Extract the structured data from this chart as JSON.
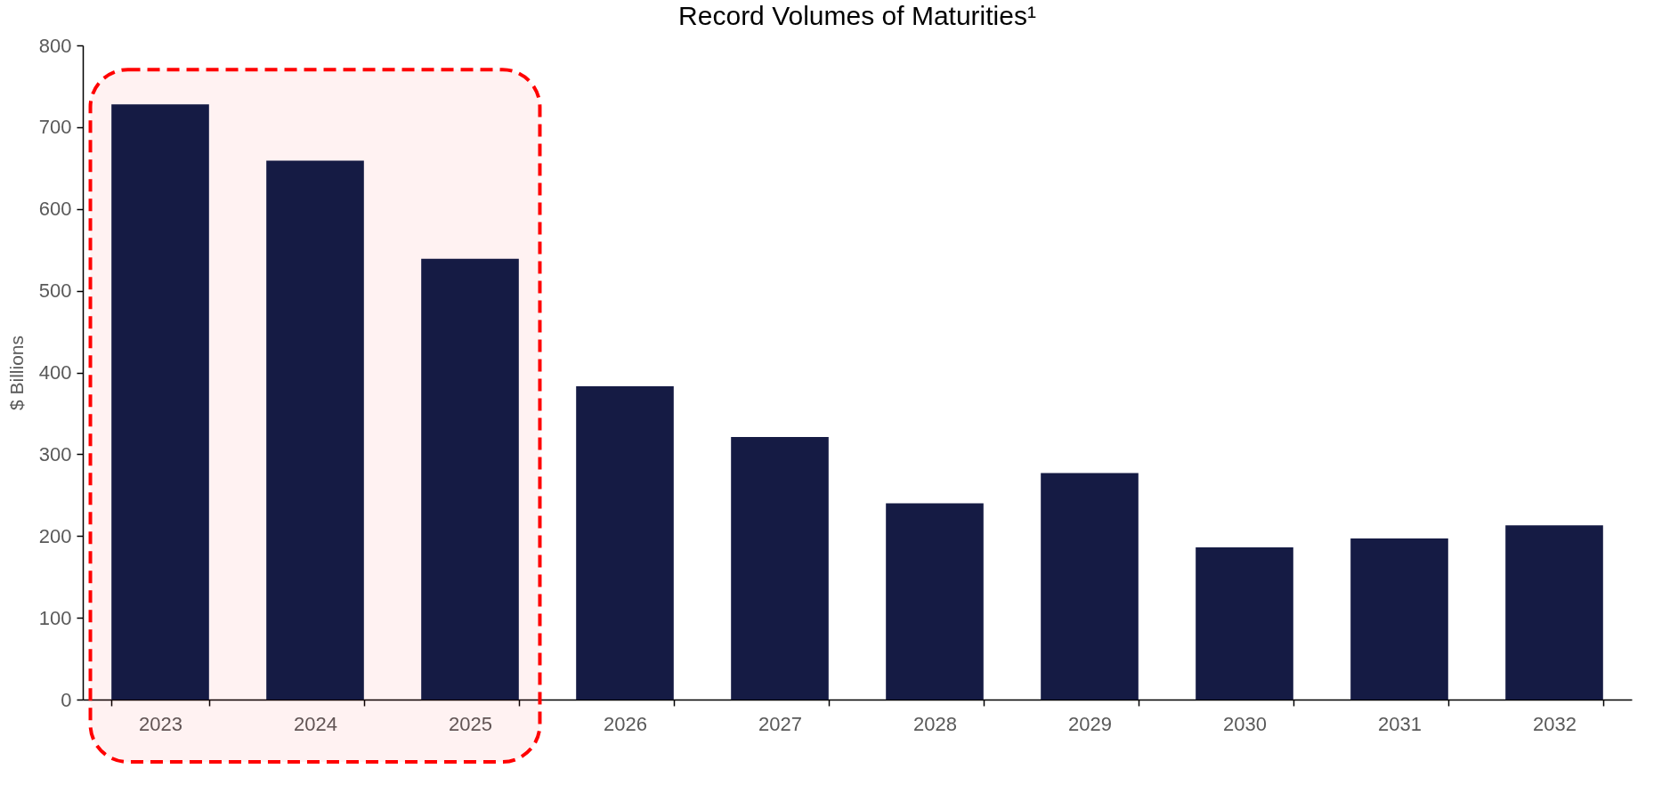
{
  "chart_data": {
    "type": "bar",
    "title": "Record Volumes of Maturities¹",
    "ylabel": "$ Billions",
    "categories": [
      "2023",
      "2024",
      "2025",
      "2026",
      "2027",
      "2028",
      "2029",
      "2030",
      "2031",
      "2032"
    ],
    "values": [
      728,
      659,
      539,
      383,
      321,
      240,
      277,
      186,
      197,
      213
    ],
    "color": "#151b44",
    "ylim": [
      0,
      800
    ],
    "yticks": [
      0,
      100,
      200,
      300,
      400,
      500,
      600,
      700,
      800
    ],
    "grid": false,
    "bands": [
      {
        "axis": "x",
        "from": "2023",
        "to": "2025",
        "color": "#ff0000"
      }
    ]
  }
}
